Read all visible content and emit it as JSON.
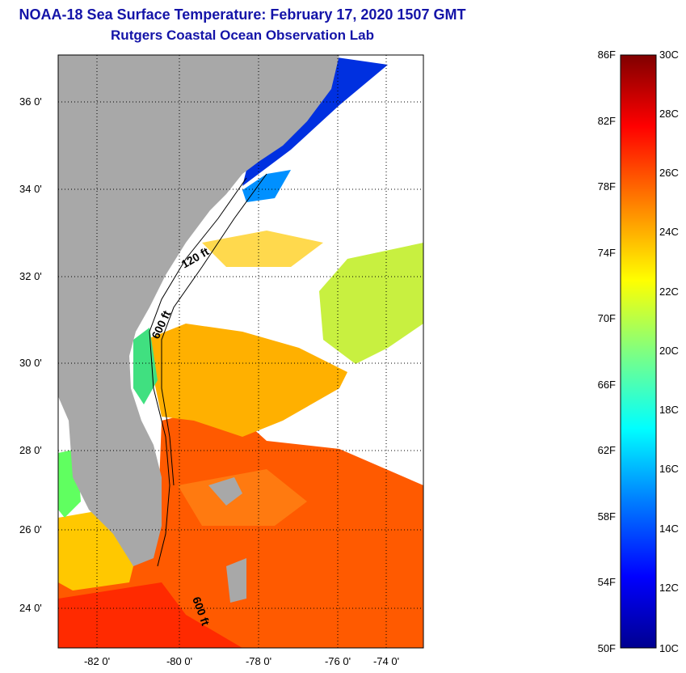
{
  "title": "NOAA-18 Sea Surface Temperature:  February 17, 2020 1507 GMT",
  "subtitle": "Rutgers Coastal Ocean Observation Lab",
  "map": {
    "lat_labels": [
      "36 0'",
      "34 0'",
      "32 0'",
      "30 0'",
      "28 0'",
      "26 0'",
      "24 0'"
    ],
    "lon_labels": [
      "-82 0'",
      "-80 0'",
      "-78 0'",
      "-76 0'",
      "-74 0'"
    ],
    "isobath_labels": [
      "120 ft",
      "600 ft",
      "600 ft"
    ],
    "land_color": "#a8a8a8",
    "cloud_color": "#ffffff"
  },
  "colorbar": {
    "f_labels": [
      "86F",
      "82F",
      "78F",
      "74F",
      "70F",
      "66F",
      "62F",
      "58F",
      "54F",
      "50F"
    ],
    "c_labels": [
      "30C",
      "28C",
      "26C",
      "24C",
      "22C",
      "20C",
      "18C",
      "16C",
      "14C",
      "12C",
      "10C"
    ],
    "stops": [
      "#000090",
      "#0000ff",
      "#0080ff",
      "#00ffff",
      "#80ff80",
      "#ffff00",
      "#ff8000",
      "#ff0000",
      "#800000"
    ]
  }
}
